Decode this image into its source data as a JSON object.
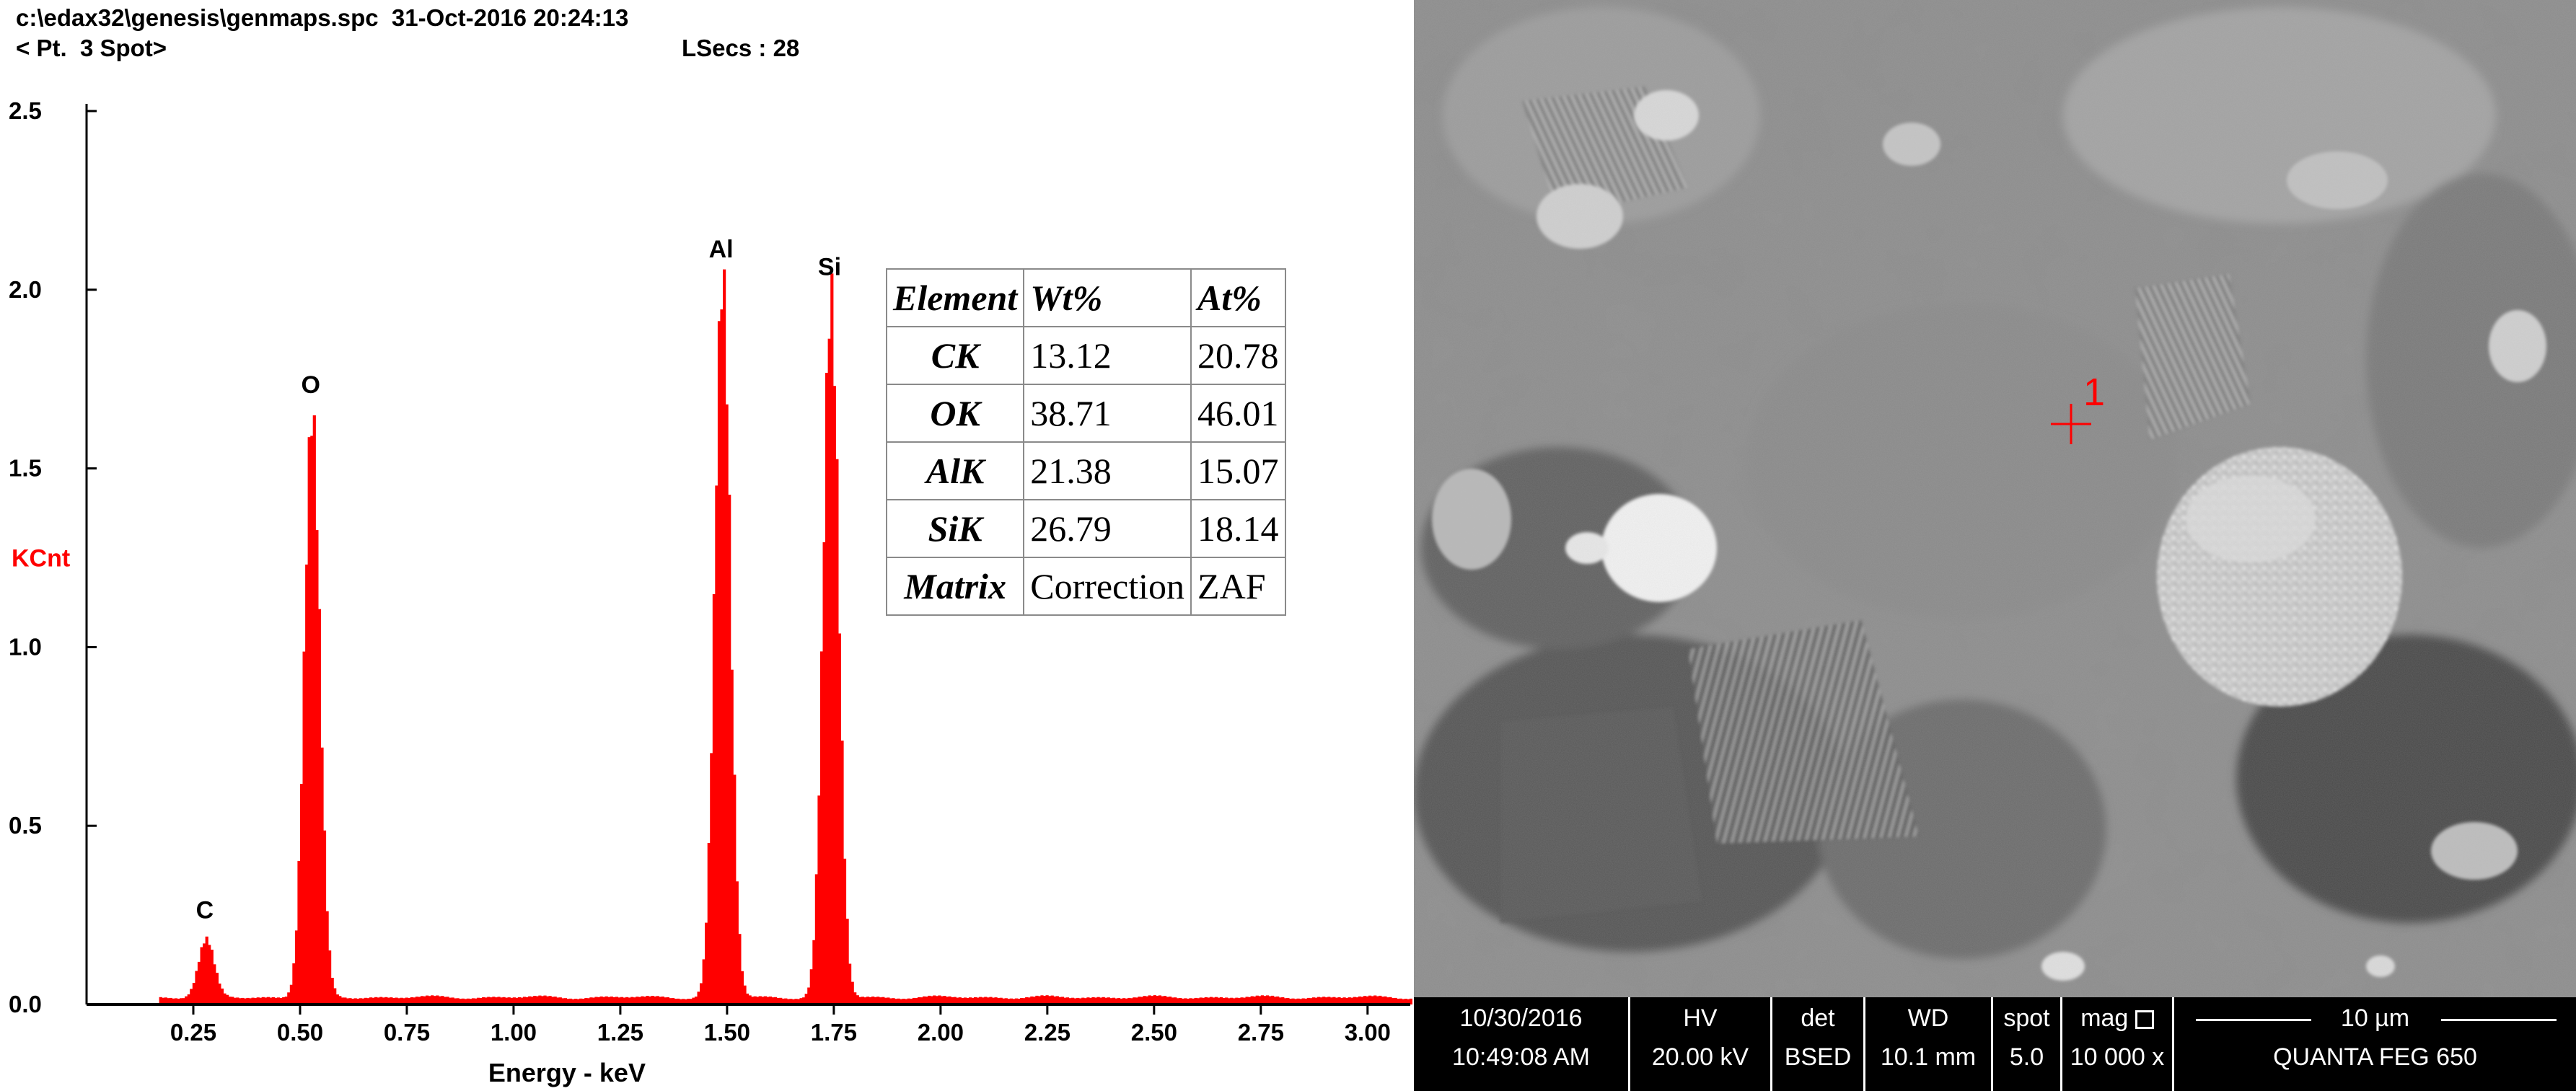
{
  "spectrum": {
    "header_path": "c:\\edax32\\genesis\\genmaps.spc",
    "header_datetime": "31-Oct-2016 20:24:13",
    "header_spot": "< Pt.  3 Spot>",
    "header_lsecs_label": "LSecs :",
    "header_lsecs_value": "28"
  },
  "chart_data": {
    "type": "bar",
    "xlabel": "Energy - keV",
    "ylabel": "KCnt",
    "xlim": [
      0.0,
      3.1
    ],
    "ylim": [
      0.0,
      2.5
    ],
    "x_ticks": [
      "0.25",
      "0.50",
      "0.75",
      "1.00",
      "1.25",
      "1.50",
      "1.75",
      "2.00",
      "2.25",
      "2.50",
      "2.75",
      "3.00"
    ],
    "y_ticks": [
      "0.0",
      "0.5",
      "1.0",
      "1.5",
      "2.0",
      "2.5"
    ],
    "bar_color": "#ff0000",
    "background_level": 0.02,
    "peaks": [
      {
        "label": "C",
        "energy": 0.277,
        "height": 0.16
      },
      {
        "label": "O",
        "energy": 0.525,
        "height": 1.63
      },
      {
        "label": "Al",
        "energy": 1.486,
        "height": 2.01
      },
      {
        "label": "Si",
        "energy": 1.74,
        "height": 1.96
      }
    ]
  },
  "composition_table": {
    "headers": [
      "Element",
      "Wt%",
      "At%"
    ],
    "rows": [
      [
        "CK",
        "13.12",
        "20.78"
      ],
      [
        "OK",
        "38.71",
        "46.01"
      ],
      [
        "AlK",
        "21.38",
        "15.07"
      ],
      [
        "SiK",
        "26.79",
        "18.14"
      ],
      [
        "Matrix",
        "Correction",
        "ZAF"
      ]
    ]
  },
  "sem": {
    "marker_label": "1",
    "marker_color": "#ff0000",
    "info_bar": {
      "date": "10/30/2016",
      "time": "10:49:08 AM",
      "hv_label": "HV",
      "hv_value": "20.00 kV",
      "det_label": "det",
      "det_value": "BSED",
      "wd_label": "WD",
      "wd_value": "10.1 mm",
      "spot_label": "spot",
      "spot_value": "5.0",
      "mag_label": "mag",
      "mag_value": "10 000 x",
      "scale_label": "10 µm",
      "instrument": "QUANTA FEG 650"
    }
  }
}
